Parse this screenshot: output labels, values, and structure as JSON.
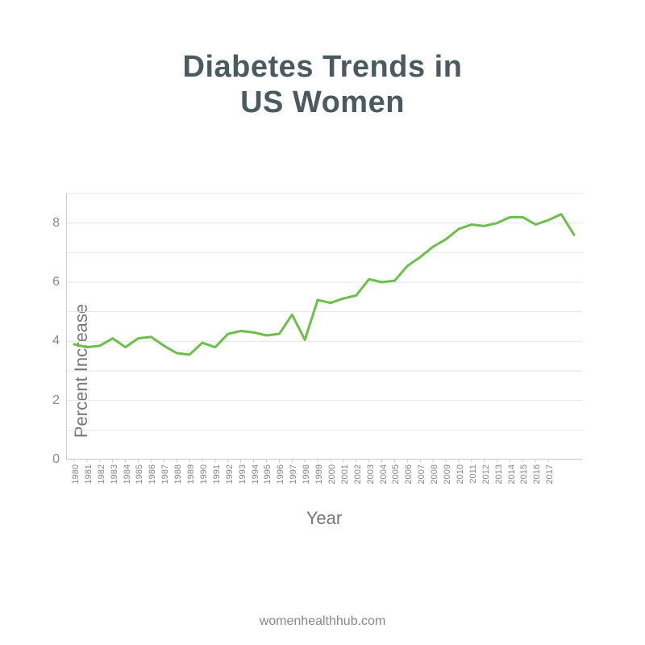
{
  "title_line1": "Diabetes Trends in",
  "title_line2": "US Women",
  "chart": {
    "type": "line",
    "ylabel": "Percent Increase",
    "xlabel": "Year",
    "line_color": "#6cc04a",
    "line_width": 3,
    "grid_color": "#e6e6e6",
    "axis_color": "#d0d0d0",
    "background_color": "#ffffff",
    "label_color": "#888888",
    "label_fontsize": 16,
    "axis_title_fontsize": 22,
    "ylim": [
      0,
      9
    ],
    "yticks": [
      0,
      2,
      4,
      6,
      8
    ],
    "years": [
      1980,
      1981,
      1982,
      1983,
      1984,
      1985,
      1986,
      1987,
      1988,
      1989,
      1990,
      1991,
      1992,
      1993,
      1994,
      1995,
      1996,
      1997,
      1998,
      1999,
      2000,
      2001,
      2002,
      2003,
      2004,
      2005,
      2006,
      2007,
      2008,
      2009,
      2010,
      2011,
      2012,
      2013,
      2014,
      2015,
      2016,
      2017
    ],
    "values": [
      3.9,
      3.8,
      3.85,
      4.1,
      3.8,
      4.1,
      4.15,
      3.85,
      3.6,
      3.55,
      3.95,
      3.8,
      4.25,
      4.35,
      4.3,
      4.2,
      4.25,
      4.9,
      4.05,
      5.4,
      5.3,
      5.45,
      5.55,
      6.1,
      6.0,
      6.05,
      6.55,
      6.85,
      7.2,
      7.45,
      7.8,
      7.95,
      7.9,
      8.0,
      8.2,
      8.2,
      7.95,
      8.1
    ],
    "values_extra_tail": [
      8.3,
      7.6
    ]
  },
  "footer": "womenhealthhub.com",
  "title_color": "#4a5a5f",
  "title_fontsize": 38
}
